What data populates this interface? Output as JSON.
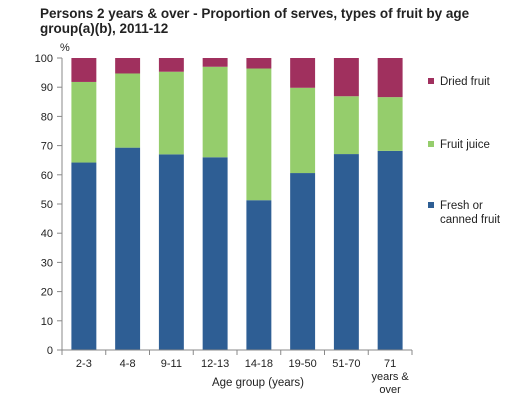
{
  "chart_data": {
    "type": "bar",
    "stacked": true,
    "title": "Persons 2 years & over - Proportion of serves, types of fruit by age group(a)(b), 2011-12",
    "ylabel": "%",
    "xlabel": "Age group (years)",
    "ylim": [
      0,
      100
    ],
    "yticks": [
      0,
      10,
      20,
      30,
      40,
      50,
      60,
      70,
      80,
      90,
      100
    ],
    "categories": [
      "2-3",
      "4-8",
      "9-11",
      "12-13",
      "14-18",
      "19-50",
      "51-70",
      "71 years & over"
    ],
    "series": [
      {
        "name": "Fresh or canned fruit",
        "color": "#2e5e94",
        "values": [
          64.2,
          69.3,
          67.0,
          66.0,
          51.3,
          60.6,
          67.1,
          68.2
        ]
      },
      {
        "name": "Fruit juice",
        "color": "#95cd6c",
        "values": [
          27.6,
          25.4,
          28.3,
          31.0,
          45.1,
          29.2,
          19.8,
          18.4
        ]
      },
      {
        "name": "Dried fruit",
        "color": "#a0305e",
        "values": [
          8.2,
          5.3,
          4.7,
          3.0,
          3.6,
          10.2,
          13.1,
          13.4
        ]
      }
    ],
    "legend_position": "right",
    "grid": false
  }
}
